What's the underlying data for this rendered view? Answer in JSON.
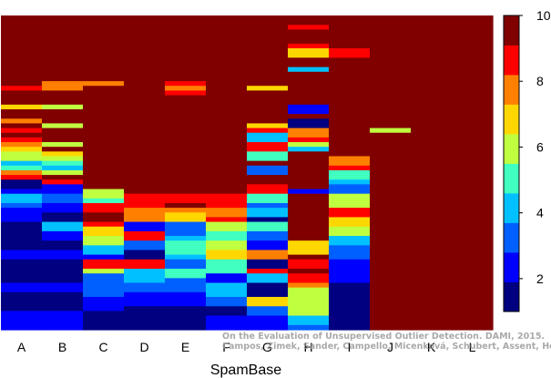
{
  "chart_data": {
    "type": "heatmap",
    "xlabel": "SpamBase",
    "categories": [
      "A",
      "B",
      "C",
      "D",
      "E",
      "F",
      "G",
      "H",
      "I",
      "J",
      "K",
      "L"
    ],
    "colorbar": {
      "range": [
        1,
        10
      ],
      "ticks": [
        2,
        4,
        6,
        8,
        10
      ],
      "palette": [
        "#000080",
        "#0000FF",
        "#0060FF",
        "#00C0FF",
        "#40FFC0",
        "#C0FF40",
        "#FFD700",
        "#FF8000",
        "#FF0000",
        "#800000"
      ]
    },
    "rows_top_to_bottom": 67,
    "columns": [
      {
        "name": "A",
        "values": [
          10,
          10,
          10,
          10,
          10,
          10,
          10,
          10,
          10,
          10,
          10,
          10,
          10,
          10,
          10,
          9,
          10,
          10,
          10,
          7,
          10,
          10,
          8,
          10,
          9,
          10,
          9,
          8,
          7,
          6,
          6,
          4,
          5,
          8,
          9,
          1,
          1,
          2,
          4,
          4,
          3,
          2,
          2,
          2,
          1,
          1,
          1,
          1,
          1,
          1,
          2,
          2,
          1,
          1,
          1,
          1,
          1,
          2,
          2,
          1,
          1,
          1,
          1,
          2,
          2,
          2,
          2
        ]
      },
      {
        "name": "B",
        "values": [
          10,
          10,
          10,
          10,
          10,
          10,
          10,
          10,
          10,
          10,
          10,
          10,
          10,
          10,
          8,
          8,
          10,
          10,
          10,
          6,
          10,
          10,
          10,
          6,
          10,
          10,
          10,
          6,
          10,
          7,
          6,
          5,
          4,
          6,
          10,
          9,
          2,
          2,
          3,
          3,
          2,
          2,
          1,
          1,
          4,
          4,
          2,
          2,
          1,
          1,
          2,
          2,
          1,
          1,
          1,
          1,
          1,
          2,
          2,
          1,
          1,
          1,
          1,
          2,
          2,
          2,
          2
        ]
      },
      {
        "name": "C",
        "values": [
          10,
          10,
          10,
          10,
          10,
          10,
          10,
          10,
          10,
          10,
          10,
          10,
          10,
          10,
          8,
          10,
          10,
          10,
          10,
          10,
          10,
          10,
          10,
          10,
          10,
          10,
          10,
          10,
          10,
          10,
          10,
          10,
          10,
          10,
          10,
          10,
          10,
          6,
          6,
          5,
          9,
          9,
          10,
          10,
          9,
          7,
          7,
          6,
          6,
          4,
          4,
          2,
          9,
          9,
          6,
          3,
          3,
          3,
          3,
          3,
          2,
          2,
          2,
          1,
          1,
          1,
          1
        ]
      },
      {
        "name": "D",
        "values": [
          10,
          10,
          10,
          10,
          10,
          10,
          10,
          10,
          10,
          10,
          10,
          10,
          10,
          10,
          10,
          10,
          10,
          10,
          10,
          10,
          10,
          10,
          10,
          10,
          10,
          10,
          10,
          10,
          10,
          10,
          10,
          10,
          10,
          10,
          10,
          10,
          10,
          10,
          9,
          9,
          9,
          8,
          8,
          8,
          2,
          2,
          9,
          9,
          3,
          3,
          1,
          1,
          9,
          9,
          4,
          4,
          4,
          3,
          3,
          2,
          2,
          2,
          1,
          1,
          1,
          1,
          1
        ]
      },
      {
        "name": "E",
        "values": [
          10,
          10,
          10,
          10,
          10,
          10,
          10,
          10,
          10,
          10,
          10,
          10,
          10,
          10,
          9,
          8,
          9,
          10,
          10,
          10,
          10,
          10,
          10,
          10,
          10,
          10,
          10,
          10,
          10,
          10,
          10,
          10,
          10,
          10,
          10,
          10,
          10,
          10,
          9,
          9,
          10,
          8,
          7,
          7,
          3,
          3,
          3,
          4,
          5,
          5,
          5,
          4,
          3,
          3,
          5,
          5,
          3,
          3,
          3,
          2,
          2,
          2,
          1,
          1,
          1,
          1,
          1
        ]
      },
      {
        "name": "F",
        "values": [
          10,
          10,
          10,
          10,
          10,
          10,
          10,
          10,
          10,
          10,
          10,
          10,
          10,
          10,
          10,
          10,
          10,
          10,
          10,
          10,
          10,
          10,
          10,
          10,
          10,
          10,
          10,
          10,
          10,
          10,
          10,
          10,
          10,
          10,
          10,
          10,
          10,
          10,
          9,
          9,
          9,
          8,
          8,
          9,
          6,
          6,
          5,
          5,
          6,
          6,
          7,
          7,
          5,
          5,
          5,
          2,
          2,
          4,
          4,
          4,
          3,
          3,
          1,
          1,
          2,
          2,
          2
        ]
      },
      {
        "name": "G",
        "values": [
          10,
          10,
          10,
          10,
          10,
          10,
          10,
          10,
          10,
          10,
          10,
          10,
          10,
          10,
          10,
          7,
          10,
          10,
          10,
          10,
          10,
          10,
          10,
          7,
          9,
          4,
          4,
          9,
          9,
          5,
          5,
          10,
          3,
          3,
          10,
          10,
          9,
          9,
          5,
          5,
          3,
          4,
          4,
          1,
          5,
          5,
          3,
          3,
          2,
          2,
          8,
          8,
          1,
          1,
          9,
          4,
          4,
          1,
          1,
          1,
          7,
          7,
          3,
          3,
          2,
          2,
          2
        ]
      },
      {
        "name": "H",
        "values": [
          10,
          10,
          9,
          10,
          10,
          10,
          9,
          7,
          7,
          10,
          10,
          4,
          10,
          10,
          10,
          10,
          10,
          10,
          10,
          2,
          2,
          10,
          1,
          1,
          8,
          8,
          9,
          6,
          4,
          10,
          10,
          10,
          10,
          10,
          10,
          10,
          10,
          2,
          10,
          10,
          10,
          10,
          10,
          10,
          10,
          10,
          10,
          10,
          7,
          7,
          7,
          10,
          9,
          9,
          10,
          9,
          9,
          8,
          6,
          6,
          6,
          6,
          6,
          6,
          4,
          4,
          3
        ]
      },
      {
        "name": "I",
        "values": [
          10,
          10,
          10,
          10,
          10,
          10,
          10,
          9,
          9,
          10,
          10,
          10,
          10,
          10,
          10,
          10,
          10,
          10,
          10,
          10,
          10,
          10,
          10,
          10,
          10,
          10,
          10,
          10,
          10,
          10,
          8,
          8,
          9,
          5,
          5,
          4,
          3,
          3,
          6,
          6,
          6,
          9,
          9,
          7,
          7,
          6,
          6,
          4,
          4,
          3,
          3,
          3,
          2,
          2,
          2,
          2,
          2,
          1,
          1,
          1,
          1,
          1,
          1,
          1,
          1,
          1,
          1
        ]
      },
      {
        "name": "J",
        "values": [
          10,
          10,
          10,
          10,
          10,
          10,
          10,
          10,
          10,
          10,
          10,
          10,
          10,
          10,
          10,
          10,
          10,
          10,
          10,
          10,
          10,
          10,
          10,
          10,
          6,
          10,
          10,
          10,
          10,
          10,
          10,
          10,
          10,
          10,
          10,
          10,
          10,
          10,
          10,
          10,
          10,
          10,
          10,
          10,
          10,
          10,
          10,
          10,
          10,
          10,
          10,
          10,
          10,
          10,
          10,
          10,
          10,
          10,
          10,
          10,
          10,
          10,
          10,
          10,
          10,
          10,
          10
        ]
      },
      {
        "name": "K",
        "values": [
          10,
          10,
          10,
          10,
          10,
          10,
          10,
          10,
          10,
          10,
          10,
          10,
          10,
          10,
          10,
          10,
          10,
          10,
          10,
          10,
          10,
          10,
          10,
          10,
          10,
          10,
          10,
          10,
          10,
          10,
          10,
          10,
          10,
          10,
          10,
          10,
          10,
          10,
          10,
          10,
          10,
          10,
          10,
          10,
          10,
          10,
          10,
          10,
          10,
          10,
          10,
          10,
          10,
          10,
          10,
          10,
          10,
          10,
          10,
          10,
          10,
          10,
          10,
          10,
          10,
          10,
          10
        ]
      },
      {
        "name": "L",
        "values": [
          10,
          10,
          10,
          10,
          10,
          10,
          10,
          10,
          10,
          10,
          10,
          10,
          10,
          10,
          10,
          10,
          10,
          10,
          10,
          10,
          10,
          10,
          10,
          10,
          10,
          10,
          10,
          10,
          10,
          10,
          10,
          10,
          10,
          10,
          10,
          10,
          10,
          10,
          10,
          10,
          10,
          10,
          10,
          10,
          10,
          10,
          10,
          10,
          10,
          10,
          10,
          10,
          10,
          10,
          10,
          10,
          10,
          10,
          10,
          10,
          10,
          10,
          10,
          10,
          10,
          10,
          10
        ]
      }
    ]
  },
  "watermark": [
    "On the Evaluation of Unsupervised Outlier Detection. DAMI, 2015.",
    "Campos, Zimek, Sander, Campello, Micenková, Schubert, Assent, Houle"
  ]
}
